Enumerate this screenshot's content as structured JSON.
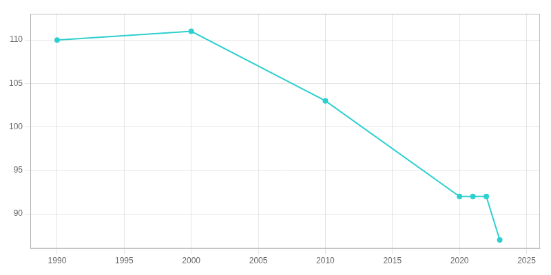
{
  "chart_data": {
    "type": "line",
    "x": [
      1990,
      2000,
      2010,
      2020,
      2021,
      2022,
      2023
    ],
    "values": [
      110,
      111,
      103,
      92,
      92,
      92,
      87
    ],
    "color": "#2ecfcf",
    "marker": "circle",
    "xlim": [
      1988,
      2026
    ],
    "xticks": [
      1990,
      1995,
      2000,
      2005,
      2010,
      2015,
      2020,
      2025
    ],
    "ylim": [
      86,
      113
    ],
    "yticks": [
      90,
      95,
      100,
      105,
      110
    ],
    "grid": true
  }
}
